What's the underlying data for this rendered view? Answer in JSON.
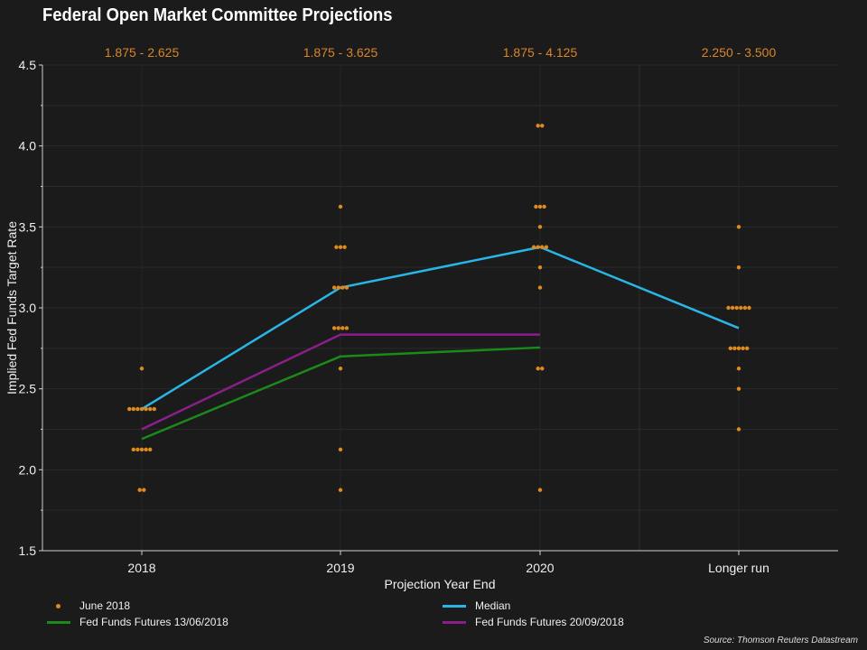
{
  "chart_data": {
    "type": "scatter",
    "title": "Federal Open Market Committee Projections",
    "xlabel": "Projection Year End",
    "ylabel": "Implied Fed Funds Target Rate",
    "categories": [
      "2018",
      "2019",
      "2020",
      "Longer run"
    ],
    "ylim": [
      1.5,
      4.5
    ],
    "yticks": [
      "1.5",
      "2.0",
      "2.5",
      "3.0",
      "3.5",
      "4.0",
      "4.5"
    ],
    "range_labels": [
      "1.875 - 2.625",
      "1.875 - 3.625",
      "1.875 - 4.125",
      "2.250 - 3.500"
    ],
    "grid": true,
    "dots": {
      "name": "June 2018",
      "color": "#e08a1e",
      "points": [
        [
          {
            "y": 2.625,
            "n": 1
          },
          {
            "y": 2.375,
            "n": 7
          },
          {
            "y": 2.125,
            "n": 5
          },
          {
            "y": 1.875,
            "n": 2
          }
        ],
        [
          {
            "y": 3.625,
            "n": 1
          },
          {
            "y": 3.375,
            "n": 3
          },
          {
            "y": 3.125,
            "n": 4
          },
          {
            "y": 2.875,
            "n": 4
          },
          {
            "y": 2.625,
            "n": 1
          },
          {
            "y": 2.125,
            "n": 1
          },
          {
            "y": 1.875,
            "n": 1
          }
        ],
        [
          {
            "y": 4.125,
            "n": 2
          },
          {
            "y": 3.625,
            "n": 3
          },
          {
            "y": 3.5,
            "n": 1
          },
          {
            "y": 3.375,
            "n": 4
          },
          {
            "y": 3.25,
            "n": 1
          },
          {
            "y": 3.125,
            "n": 1
          },
          {
            "y": 2.625,
            "n": 2
          },
          {
            "y": 1.875,
            "n": 1
          }
        ],
        [
          {
            "y": 3.5,
            "n": 1
          },
          {
            "y": 3.25,
            "n": 1
          },
          {
            "y": 3.0,
            "n": 6
          },
          {
            "y": 2.75,
            "n": 5
          },
          {
            "y": 2.625,
            "n": 1
          },
          {
            "y": 2.5,
            "n": 1
          },
          {
            "y": 2.25,
            "n": 1
          }
        ]
      ]
    },
    "series": [
      {
        "name": "Median",
        "color": "#29b6e6",
        "values": [
          2.375,
          3.125,
          3.375,
          2.875
        ]
      },
      {
        "name": "Fed Funds Futures 13/06/2018",
        "color": "#1b8a1b",
        "values": [
          2.19,
          2.7,
          2.755,
          null
        ]
      },
      {
        "name": "Fed Funds Futures 20/09/2018",
        "color": "#8a1e8a",
        "values": [
          2.25,
          2.835,
          2.835,
          null
        ]
      }
    ]
  },
  "legend": {
    "june": "June 2018",
    "median": "Median",
    "ff1": "Fed Funds Futures 13/06/2018",
    "ff2": "Fed Funds Futures 20/09/2018"
  },
  "source": "Source: Thomson Reuters Datastream"
}
